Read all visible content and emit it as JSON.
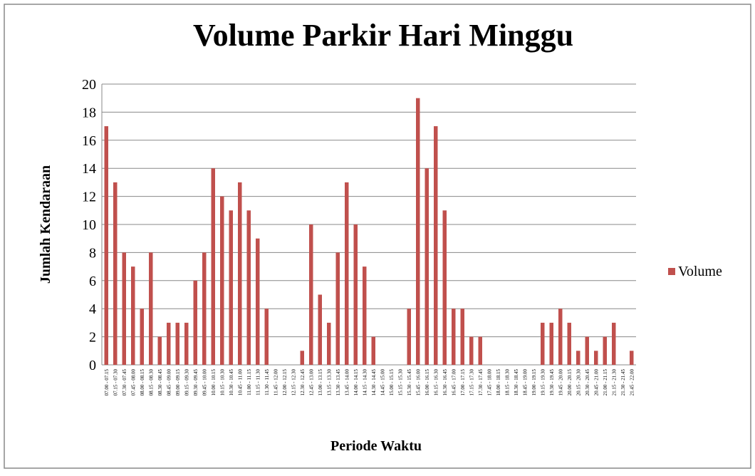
{
  "chart_data": {
    "type": "bar",
    "title": "Volume Parkir Hari Minggu",
    "x_label": "Periode Waktu",
    "y_label": "Jumlah Kendaraan",
    "categories": [
      "07.00 - 07.15",
      "07.15 - 07.30",
      "07.30 - 07.45",
      "07.45 - 08.00",
      "08.00 - 08.15",
      "08.15 - 08.30",
      "08.30 - 08.45",
      "08.45 - 09.00",
      "09.00 - 09.15",
      "09.15 - 09.30",
      "09.30 - 09.45",
      "09.45 - 10.00",
      "10.00 - 10.15",
      "10.15 - 10.30",
      "10.30 - 10.45",
      "10.45 - 11.00",
      "11.00 - 11.15",
      "11.15 - 11.30",
      "11.30 - 11.45",
      "11.45 - 12.00",
      "12.00 - 12.15",
      "12.15 - 12.30",
      "12.30 - 12.45",
      "12.45 - 13.00",
      "13.00 - 13.15",
      "13.15 - 13.30",
      "13.30 - 13.45",
      "13.45 - 14.00",
      "14.00 - 14.15",
      "14.15 - 14.30",
      "14.30 - 14.45",
      "14.45 - 15.00",
      "15.00 - 15.15",
      "15.15 - 15.30",
      "15.30 - 15.45",
      "15.45 - 16.00",
      "16.00 - 16.15",
      "16.15 - 16.30",
      "16.30 - 16.45",
      "16.45 - 17.00",
      "17.00 - 17.15",
      "17.15 - 17.30",
      "17.30 - 17.45",
      "17.45 - 18.00",
      "18.00 - 18.15",
      "18.15 - 18.30",
      "18.30 - 18.45",
      "18.45 - 19.00",
      "19.00 - 19.15",
      "19.15 - 19.30",
      "19.30 - 19.45",
      "19.45 - 20.00",
      "20.00 - 20.15",
      "20.15 - 20.30",
      "20.30 - 20.45",
      "20.45 - 21.00",
      "21.00 - 21.15",
      "21.15 - 21.30",
      "21.30 - 21.45",
      "21.45 - 22.00"
    ],
    "series": [
      {
        "name": "Volume",
        "color": "#c0504d",
        "values": [
          17,
          13,
          8,
          7,
          4,
          8,
          2,
          3,
          3,
          3,
          6,
          8,
          14,
          12,
          11,
          13,
          11,
          9,
          4,
          0,
          0,
          0,
          1,
          10,
          5,
          3,
          8,
          13,
          10,
          7,
          2,
          0,
          0,
          0,
          4,
          19,
          14,
          17,
          11,
          4,
          4,
          2,
          2,
          0,
          0,
          0,
          0,
          0,
          0,
          3,
          3,
          4,
          3,
          1,
          2,
          1,
          2,
          3,
          0,
          1
        ]
      }
    ],
    "ylim": [
      0,
      20
    ],
    "yticks": [
      0,
      2,
      4,
      6,
      8,
      10,
      12,
      14,
      16,
      18,
      20
    ],
    "grid": true,
    "legend": "right"
  }
}
